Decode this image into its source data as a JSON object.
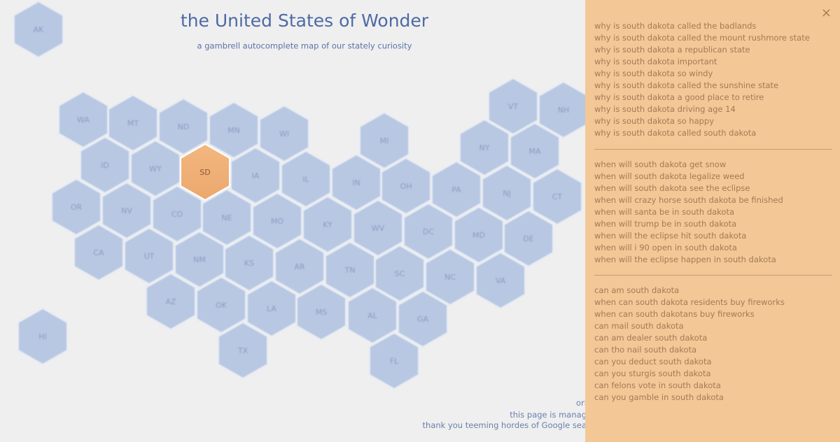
{
  "header": {
    "title": "the United States of Wonder",
    "subtitle": "a gambrell autocomplete map of our stately curiosity"
  },
  "map": {
    "selected": "SD",
    "states": [
      "AK",
      "HI",
      "WA",
      "MT",
      "ND",
      "MN",
      "WI",
      "MI",
      "VT",
      "NH",
      "NY",
      "MA",
      "ID",
      "WY",
      "SD",
      "IA",
      "IL",
      "IN",
      "OH",
      "PA",
      "NJ",
      "CT",
      "OR",
      "NV",
      "CO",
      "NE",
      "MO",
      "KY",
      "WV",
      "DC",
      "MD",
      "DE",
      "CA",
      "UT",
      "NM",
      "KS",
      "AR",
      "TN",
      "SC",
      "NC",
      "VA",
      "AZ",
      "OK",
      "LA",
      "MS",
      "AL",
      "GA",
      "TX",
      "FL"
    ]
  },
  "footer": {
    "lines": [
      "ori",
      "this page is manag",
      "thank you teeming hordes of Google sea"
    ]
  },
  "panel": {
    "close": "×",
    "groups": [
      [
        "why is south dakota called the badlands",
        "why is south dakota called the mount rushmore state",
        "why is south dakota a republican state",
        "why is south dakota important",
        "why is south dakota so windy",
        "why is south dakota called the sunshine state",
        "why is south dakota a good place to retire",
        "why is south dakota driving age 14",
        "why is south dakota so happy",
        "why is south dakota called south dakota"
      ],
      [
        "when will south dakota get snow",
        "when will south dakota legalize weed",
        "when will south dakota see the eclipse",
        "when will crazy horse south dakota be finished",
        "when will santa be in south dakota",
        "when will trump be in south dakota",
        "when will the eclipse hit south dakota",
        "when will i 90 open in south dakota",
        "when will the eclipse happen in south dakota"
      ],
      [
        "can am south dakota",
        "when can south dakota residents buy fireworks",
        "when can south dakotans buy fireworks",
        "can mail south dakota",
        "can am dealer south dakota",
        "can tho nail south dakota",
        "can you deduct south dakota",
        "can you sturgis south dakota",
        "can felons vote in south dakota",
        "can you gamble in south dakota"
      ]
    ]
  }
}
